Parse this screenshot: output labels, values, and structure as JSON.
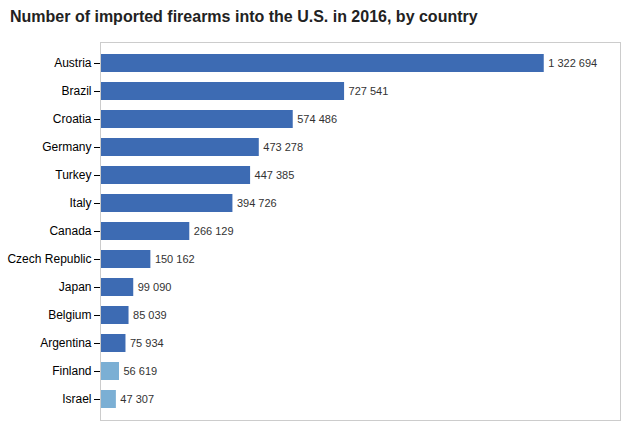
{
  "chart_data": {
    "type": "bar",
    "title": "Number of imported firearms into the U.S. in 2016, by country",
    "orientation": "horizontal",
    "categories": [
      "Austria",
      "Brazil",
      "Croatia",
      "Germany",
      "Turkey",
      "Italy",
      "Canada",
      "Czech Republic",
      "Japan",
      "Belgium",
      "Argentina",
      "Finland",
      "Israel"
    ],
    "values": [
      1322694,
      727541,
      574486,
      473278,
      447385,
      394726,
      266129,
      150162,
      99090,
      85039,
      75934,
      56619,
      47307
    ],
    "value_labels": [
      "1 322 694",
      "727 541",
      "574 486",
      "473 278",
      "447 385",
      "394 726",
      "266 129",
      "150 162",
      "99 090",
      "85 039",
      "75 934",
      "56 619",
      "47 307"
    ],
    "colors": [
      "#3d6bb3",
      "#3d6bb3",
      "#3d6bb3",
      "#3d6bb3",
      "#3d6bb3",
      "#3d6bb3",
      "#3d6bb3",
      "#3d6bb3",
      "#3d6bb3",
      "#3d6bb3",
      "#3d6bb3",
      "#7bafd4",
      "#7bafd4"
    ],
    "xlim": [
      0,
      1550000
    ],
    "data_labels": true,
    "tick_labels": "y",
    "grid": false
  }
}
